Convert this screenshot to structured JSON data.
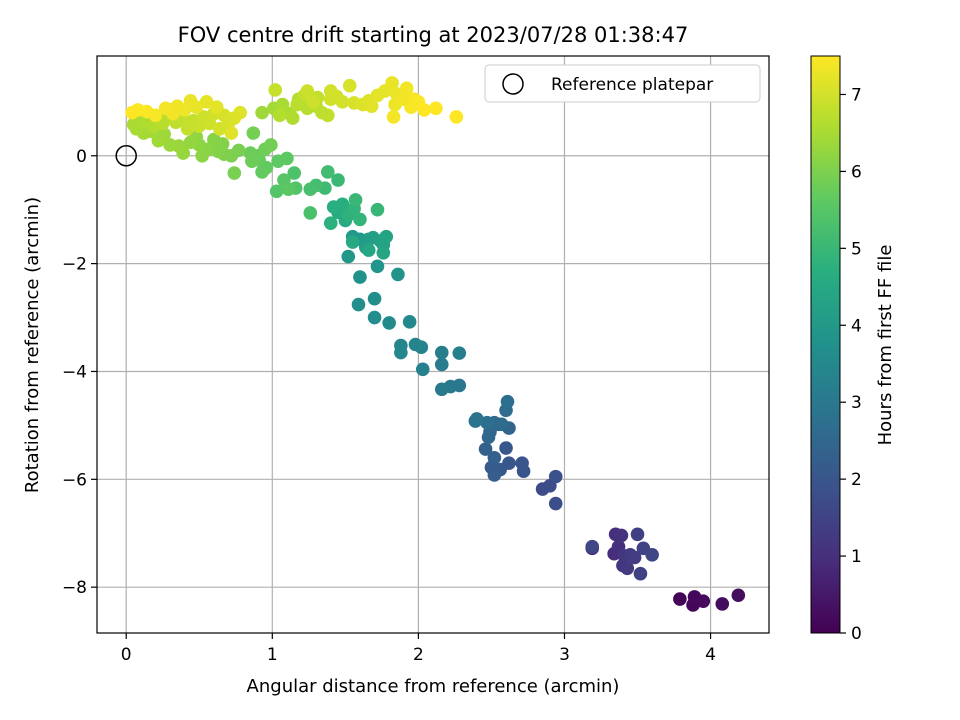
{
  "chart_data": {
    "type": "scatter",
    "title": "FOV centre drift starting at 2023/07/28 01:38:47",
    "xlabel": "Angular distance from reference (arcmin)",
    "ylabel": "Rotation from reference (arcmin)",
    "xlim": [
      -0.2,
      4.4
    ],
    "ylim": [
      -8.85,
      1.85
    ],
    "xticks": [
      0,
      1,
      2,
      3,
      4
    ],
    "yticks": [
      0,
      -2,
      -4,
      -6,
      -8
    ],
    "xtick_labels": [
      "0",
      "1",
      "2",
      "3",
      "4"
    ],
    "ytick_labels": [
      "0",
      "−2",
      "−4",
      "−6",
      "−8"
    ],
    "grid": true,
    "legend": {
      "placement": "upper-right",
      "entries": [
        "Reference platepar"
      ]
    },
    "reference_point": {
      "x": 0,
      "y": 0
    },
    "colorbar": {
      "label": "Hours from first FF file",
      "range": [
        0,
        7.5
      ],
      "ticks": [
        0,
        1,
        2,
        3,
        4,
        5,
        6,
        7
      ],
      "tick_labels": [
        "0",
        "1",
        "2",
        "3",
        "4",
        "5",
        "6",
        "7"
      ],
      "colormap": "viridis"
    },
    "points": [
      [
        3.79,
        -8.22,
        0.05
      ],
      [
        3.88,
        -8.33,
        0.1
      ],
      [
        3.89,
        -8.18,
        0.15
      ],
      [
        3.95,
        -8.26,
        0.2
      ],
      [
        4.08,
        -8.31,
        0.25
      ],
      [
        4.19,
        -8.15,
        0.3
      ],
      [
        3.19,
        -7.28,
        0.9
      ],
      [
        3.34,
        -7.38,
        0.95
      ],
      [
        3.35,
        -7.02,
        1.0
      ],
      [
        3.37,
        -7.25,
        1.05
      ],
      [
        3.39,
        -7.04,
        1.1
      ],
      [
        3.4,
        -7.6,
        1.15
      ],
      [
        3.41,
        -7.42,
        1.2
      ],
      [
        3.43,
        -7.65,
        1.25
      ],
      [
        3.45,
        -7.4,
        1.3
      ],
      [
        3.48,
        -7.45,
        1.35
      ],
      [
        3.5,
        -7.02,
        1.4
      ],
      [
        3.52,
        -7.75,
        1.45
      ],
      [
        3.54,
        -7.28,
        1.5
      ],
      [
        3.6,
        -7.4,
        1.55
      ],
      [
        3.19,
        -7.25,
        1.6
      ],
      [
        2.85,
        -6.18,
        1.7
      ],
      [
        2.9,
        -6.12,
        1.75
      ],
      [
        2.94,
        -6.45,
        1.8
      ],
      [
        2.94,
        -5.95,
        1.85
      ],
      [
        2.72,
        -5.85,
        1.9
      ],
      [
        2.71,
        -5.7,
        1.95
      ],
      [
        2.62,
        -5.7,
        2.0
      ],
      [
        2.6,
        -5.42,
        2.05
      ],
      [
        2.56,
        -5.82,
        2.1
      ],
      [
        2.5,
        -5.78,
        2.15
      ],
      [
        2.52,
        -5.92,
        2.2
      ],
      [
        2.52,
        -5.6,
        2.25
      ],
      [
        2.46,
        -5.44,
        2.3
      ],
      [
        2.55,
        -4.98,
        2.35
      ],
      [
        2.62,
        -5.05,
        2.4
      ],
      [
        2.48,
        -5.22,
        2.45
      ],
      [
        2.49,
        -5.12,
        2.5
      ],
      [
        2.52,
        -4.95,
        2.55
      ],
      [
        2.57,
        -4.98,
        2.6
      ],
      [
        2.6,
        -4.72,
        2.65
      ],
      [
        2.61,
        -4.56,
        2.7
      ],
      [
        2.47,
        -4.95,
        2.75
      ],
      [
        2.39,
        -4.92,
        2.8
      ],
      [
        2.4,
        -4.88,
        2.85
      ],
      [
        2.28,
        -4.26,
        2.95
      ],
      [
        2.22,
        -4.28,
        3.0
      ],
      [
        2.16,
        -4.33,
        3.05
      ],
      [
        2.16,
        -3.87,
        3.1
      ],
      [
        2.16,
        -3.65,
        3.15
      ],
      [
        2.28,
        -3.66,
        3.2
      ],
      [
        2.03,
        -3.96,
        3.25
      ],
      [
        2.02,
        -3.55,
        3.3
      ],
      [
        1.98,
        -3.5,
        3.35
      ],
      [
        1.88,
        -3.52,
        3.4
      ],
      [
        1.88,
        -3.65,
        3.45
      ],
      [
        1.94,
        -3.08,
        3.5
      ],
      [
        1.8,
        -3.1,
        3.55
      ],
      [
        1.7,
        -3.0,
        3.6
      ],
      [
        1.7,
        -2.65,
        3.65
      ],
      [
        1.59,
        -2.76,
        3.7
      ],
      [
        1.6,
        -2.25,
        3.75
      ],
      [
        1.86,
        -2.2,
        3.8
      ],
      [
        1.72,
        -2.05,
        3.85
      ],
      [
        1.52,
        -1.87,
        3.95
      ],
      [
        1.55,
        -1.5,
        4.0
      ],
      [
        1.6,
        -1.55,
        4.05
      ],
      [
        1.64,
        -1.7,
        4.1
      ],
      [
        1.66,
        -1.55,
        4.15
      ],
      [
        1.69,
        -1.52,
        4.2
      ],
      [
        1.74,
        -1.58,
        4.25
      ],
      [
        1.76,
        -1.65,
        4.3
      ],
      [
        1.78,
        -1.5,
        4.35
      ],
      [
        1.76,
        -1.8,
        4.4
      ],
      [
        1.66,
        -1.75,
        4.45
      ],
      [
        1.55,
        -1.6,
        4.5
      ],
      [
        1.5,
        -1.2,
        4.55
      ],
      [
        1.45,
        -1.05,
        4.6
      ],
      [
        1.48,
        -0.9,
        4.65
      ],
      [
        1.42,
        -0.95,
        4.7
      ],
      [
        1.4,
        -1.25,
        4.75
      ],
      [
        1.52,
        -1.1,
        4.8
      ],
      [
        1.56,
        -0.98,
        4.85
      ],
      [
        1.6,
        -1.18,
        4.9
      ],
      [
        1.72,
        -1.0,
        4.95
      ],
      [
        1.57,
        -0.82,
        5.0
      ],
      [
        1.45,
        -0.45,
        5.05
      ],
      [
        1.36,
        -0.6,
        5.1
      ],
      [
        1.38,
        -0.3,
        5.15
      ],
      [
        1.3,
        -0.55,
        5.2
      ],
      [
        1.26,
        -0.62,
        5.25
      ],
      [
        1.26,
        -1.06,
        5.3
      ],
      [
        1.15,
        -0.32,
        5.35
      ],
      [
        1.16,
        -0.6,
        5.4
      ],
      [
        1.03,
        -0.66,
        5.45
      ],
      [
        1.08,
        -0.45,
        5.5
      ],
      [
        1.11,
        -0.62,
        5.55
      ],
      [
        1.1,
        -0.05,
        5.6
      ],
      [
        1.04,
        -0.1,
        5.63
      ],
      [
        0.96,
        -0.22,
        5.66
      ],
      [
        0.93,
        -0.3,
        5.69
      ],
      [
        0.91,
        -0.08,
        5.72
      ],
      [
        0.9,
        0.0,
        5.75
      ],
      [
        0.85,
        0.05,
        5.78
      ],
      [
        0.86,
        -0.1,
        5.81
      ],
      [
        0.95,
        0.12,
        5.84
      ],
      [
        0.99,
        0.2,
        5.87
      ],
      [
        0.87,
        0.42,
        5.9
      ],
      [
        0.77,
        0.1,
        5.93
      ],
      [
        0.74,
        -0.32,
        5.96
      ],
      [
        0.72,
        0.0,
        5.99
      ],
      [
        0.67,
        0.03,
        6.02
      ],
      [
        0.63,
        0.08,
        6.05
      ],
      [
        0.66,
        0.22,
        6.08
      ],
      [
        0.6,
        0.3,
        6.11
      ],
      [
        0.56,
        0.12,
        6.14
      ],
      [
        0.52,
        0.0,
        6.17
      ],
      [
        0.5,
        0.2,
        6.2
      ],
      [
        0.48,
        0.35,
        6.23
      ],
      [
        0.44,
        0.25,
        6.26
      ],
      [
        0.39,
        0.05,
        6.29
      ],
      [
        0.36,
        0.18,
        6.32
      ],
      [
        0.3,
        0.2,
        6.35
      ],
      [
        0.26,
        0.4,
        6.38
      ],
      [
        0.22,
        0.28,
        6.41
      ],
      [
        0.17,
        0.45,
        6.44
      ],
      [
        0.12,
        0.42,
        6.47
      ],
      [
        0.07,
        0.5,
        6.5
      ],
      [
        0.05,
        0.58,
        6.53
      ],
      [
        0.1,
        0.75,
        6.56
      ],
      [
        0.14,
        0.62,
        6.59
      ],
      [
        0.19,
        0.55,
        6.62
      ],
      [
        0.22,
        0.7,
        6.65
      ],
      [
        0.25,
        0.6,
        6.68
      ],
      [
        0.28,
        0.75,
        6.71
      ],
      [
        0.3,
        0.85,
        6.74
      ],
      [
        0.34,
        0.62,
        6.77
      ],
      [
        0.38,
        0.72,
        6.8
      ],
      [
        0.42,
        0.5,
        6.83
      ],
      [
        0.46,
        0.65,
        6.86
      ],
      [
        0.5,
        0.55,
        6.89
      ],
      [
        0.53,
        0.72,
        6.92
      ],
      [
        0.57,
        0.6,
        6.95
      ],
      [
        0.6,
        0.78,
        6.98
      ],
      [
        0.64,
        0.5,
        7.01
      ],
      [
        0.67,
        0.75,
        7.04
      ],
      [
        0.7,
        0.6,
        7.07
      ],
      [
        0.74,
        0.7,
        7.1
      ],
      [
        0.78,
        0.8,
        7.13
      ],
      [
        0.72,
        0.42,
        7.16
      ],
      [
        0.62,
        0.9,
        7.19
      ],
      [
        0.55,
        1.0,
        7.22
      ],
      [
        0.48,
        0.9,
        7.25
      ],
      [
        0.44,
        1.02,
        7.28
      ],
      [
        0.4,
        0.85,
        7.31
      ],
      [
        0.35,
        0.92,
        7.34
      ],
      [
        0.32,
        0.78,
        7.37
      ],
      [
        0.27,
        0.88,
        7.4
      ],
      [
        0.2,
        0.75,
        7.43
      ],
      [
        0.14,
        0.82,
        7.46
      ],
      [
        0.08,
        0.85,
        7.49
      ],
      [
        0.04,
        0.8,
        7.5
      ],
      [
        0.93,
        0.8,
        6.4
      ],
      [
        1.01,
        0.88,
        6.45
      ],
      [
        1.07,
        0.95,
        6.5
      ],
      [
        1.12,
        0.78,
        6.55
      ],
      [
        1.14,
        0.7,
        6.6
      ],
      [
        1.05,
        0.75,
        6.63
      ],
      [
        1.18,
        1.05,
        6.66
      ],
      [
        1.24,
        0.88,
        6.69
      ],
      [
        1.3,
        0.92,
        6.72
      ],
      [
        1.34,
        0.8,
        6.75
      ],
      [
        1.38,
        0.75,
        6.78
      ],
      [
        1.31,
        1.08,
        6.81
      ],
      [
        1.22,
        1.12,
        6.84
      ],
      [
        1.02,
        1.22,
        6.87
      ],
      [
        1.24,
        1.2,
        6.9
      ],
      [
        1.28,
        1.0,
        6.93
      ],
      [
        1.4,
        1.05,
        6.96
      ],
      [
        1.44,
        1.1,
        6.99
      ],
      [
        1.48,
        1.0,
        7.02
      ],
      [
        1.53,
        1.3,
        7.05
      ],
      [
        1.56,
        0.98,
        7.08
      ],
      [
        1.62,
        0.95,
        7.11
      ],
      [
        1.66,
        1.02,
        7.14
      ],
      [
        1.68,
        0.92,
        7.17
      ],
      [
        1.72,
        1.12,
        7.2
      ],
      [
        1.77,
        1.2,
        7.23
      ],
      [
        1.82,
        1.35,
        7.26
      ],
      [
        1.85,
        1.15,
        7.29
      ],
      [
        1.84,
        0.95,
        7.32
      ],
      [
        1.9,
        1.05,
        7.35
      ],
      [
        1.92,
        1.25,
        7.38
      ],
      [
        1.95,
        0.9,
        7.41
      ],
      [
        1.97,
        1.05,
        7.44
      ],
      [
        2.0,
        1.0,
        7.47
      ],
      [
        2.04,
        0.85,
        7.5
      ],
      [
        2.12,
        0.88,
        7.5
      ],
      [
        2.26,
        0.72,
        7.5
      ],
      [
        1.83,
        0.72,
        7.4
      ],
      [
        1.4,
        1.2,
        7.0
      ],
      [
        1.17,
        0.95,
        6.7
      ]
    ]
  }
}
